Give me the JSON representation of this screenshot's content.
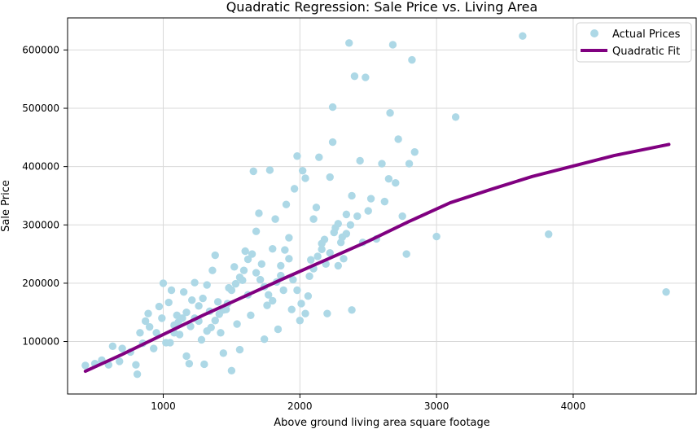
{
  "chart_data": {
    "type": "scatter",
    "title": "Quadratic Regression: Sale Price vs. Living Area",
    "xlabel": "Above ground living area square footage",
    "ylabel": "Sale Price",
    "xlim": [
      300,
      4900
    ],
    "ylim": [
      10000,
      655000
    ],
    "xticks": [
      1000,
      2000,
      3000,
      4000
    ],
    "yticks": [
      100000,
      200000,
      300000,
      400000,
      500000,
      600000
    ],
    "xtick_labels": [
      "1000",
      "2000",
      "3000",
      "4000"
    ],
    "ytick_labels": [
      "100000",
      "200000",
      "300000",
      "400000",
      "500000",
      "600000"
    ],
    "grid": true,
    "legend_position": "top-right",
    "colors": {
      "scatter": "#add8e6",
      "fit": "#800080"
    },
    "series": [
      {
        "name": "Actual Prices",
        "kind": "scatter",
        "points": [
          [
            430,
            59000
          ],
          [
            500,
            62000
          ],
          [
            550,
            68000
          ],
          [
            600,
            60000
          ],
          [
            630,
            92000
          ],
          [
            680,
            66000
          ],
          [
            700,
            88000
          ],
          [
            760,
            82000
          ],
          [
            800,
            60000
          ],
          [
            810,
            44000
          ],
          [
            830,
            115000
          ],
          [
            850,
            97000
          ],
          [
            870,
            135000
          ],
          [
            890,
            148000
          ],
          [
            900,
            125000
          ],
          [
            930,
            88000
          ],
          [
            950,
            115000
          ],
          [
            970,
            160000
          ],
          [
            990,
            140000
          ],
          [
            1000,
            200000
          ],
          [
            1020,
            98000
          ],
          [
            1040,
            167000
          ],
          [
            1060,
            188000
          ],
          [
            1080,
            128000
          ],
          [
            1100,
            145000
          ],
          [
            1120,
            112000
          ],
          [
            1150,
            185000
          ],
          [
            1170,
            75000
          ],
          [
            1190,
            62000
          ],
          [
            1210,
            171000
          ],
          [
            1230,
            201000
          ],
          [
            1260,
            135000
          ],
          [
            1280,
            103000
          ],
          [
            1300,
            61000
          ],
          [
            1320,
            197000
          ],
          [
            1340,
            152000
          ],
          [
            1360,
            222000
          ],
          [
            1380,
            248000
          ],
          [
            1400,
            168000
          ],
          [
            1420,
            115000
          ],
          [
            1440,
            80000
          ],
          [
            1460,
            155000
          ],
          [
            1480,
            192000
          ],
          [
            1500,
            50000
          ],
          [
            1520,
            228000
          ],
          [
            1540,
            130000
          ],
          [
            1560,
            86000
          ],
          [
            1580,
            205000
          ],
          [
            1600,
            255000
          ],
          [
            1620,
            180000
          ],
          [
            1640,
            145000
          ],
          [
            1660,
            392000
          ],
          [
            1680,
            289000
          ],
          [
            1700,
            320000
          ],
          [
            1720,
            233000
          ],
          [
            1740,
            104000
          ],
          [
            1760,
            162000
          ],
          [
            1780,
            394000
          ],
          [
            1800,
            259000
          ],
          [
            1820,
            310000
          ],
          [
            1840,
            121000
          ],
          [
            1860,
            213000
          ],
          [
            1880,
            188000
          ],
          [
            1900,
            335000
          ],
          [
            1920,
            242000
          ],
          [
            1940,
            155000
          ],
          [
            1960,
            362000
          ],
          [
            1980,
            418000
          ],
          [
            2000,
            136000
          ],
          [
            2020,
            393000
          ],
          [
            2040,
            380000
          ],
          [
            2060,
            178000
          ],
          [
            2080,
            240000
          ],
          [
            2100,
            310000
          ],
          [
            2120,
            330000
          ],
          [
            2140,
            416000
          ],
          [
            2160,
            258000
          ],
          [
            2180,
            275000
          ],
          [
            2200,
            148000
          ],
          [
            2220,
            382000
          ],
          [
            2240,
            442000
          ],
          [
            2260,
            295000
          ],
          [
            2280,
            230000
          ],
          [
            2300,
            270000
          ],
          [
            2320,
            242000
          ],
          [
            2340,
            318000
          ],
          [
            2360,
            612000
          ],
          [
            2380,
            350000
          ],
          [
            2400,
            555000
          ],
          [
            2420,
            315000
          ],
          [
            2440,
            410000
          ],
          [
            2460,
            270000
          ],
          [
            2480,
            553000
          ],
          [
            2500,
            324000
          ],
          [
            2520,
            345000
          ],
          [
            2560,
            276000
          ],
          [
            2600,
            405000
          ],
          [
            2620,
            340000
          ],
          [
            2650,
            379000
          ],
          [
            2680,
            609000
          ],
          [
            2700,
            372000
          ],
          [
            2720,
            447000
          ],
          [
            2750,
            315000
          ],
          [
            2780,
            250000
          ],
          [
            2800,
            405000
          ],
          [
            2820,
            583000
          ],
          [
            2840,
            425000
          ],
          [
            3000,
            280000
          ],
          [
            3140,
            485000
          ],
          [
            3630,
            624000
          ],
          [
            3820,
            284000
          ],
          [
            4680,
            185000
          ],
          [
            2240,
            502000
          ],
          [
            2660,
            492000
          ],
          [
            2380,
            154000
          ],
          [
            1050,
            98000
          ],
          [
            1080,
            115000
          ],
          [
            1110,
            133000
          ],
          [
            1140,
            140000
          ],
          [
            1170,
            150000
          ],
          [
            1200,
            126000
          ],
          [
            1230,
            140000
          ],
          [
            1260,
            161000
          ],
          [
            1290,
            174000
          ],
          [
            1320,
            118000
          ],
          [
            1350,
            124000
          ],
          [
            1380,
            136000
          ],
          [
            1410,
            147000
          ],
          [
            1440,
            154000
          ],
          [
            1470,
            165000
          ],
          [
            1500,
            188000
          ],
          [
            1530,
            199000
          ],
          [
            1560,
            210000
          ],
          [
            1590,
            222000
          ],
          [
            1620,
            241000
          ],
          [
            1650,
            250000
          ],
          [
            1680,
            218000
          ],
          [
            1710,
            206000
          ],
          [
            1740,
            194000
          ],
          [
            1770,
            180000
          ],
          [
            1800,
            170000
          ],
          [
            1830,
            202000
          ],
          [
            1860,
            230000
          ],
          [
            1890,
            257000
          ],
          [
            1920,
            278000
          ],
          [
            1950,
            206000
          ],
          [
            1980,
            188000
          ],
          [
            2010,
            165000
          ],
          [
            2040,
            148000
          ],
          [
            2070,
            212000
          ],
          [
            2100,
            225000
          ],
          [
            2130,
            246000
          ],
          [
            2160,
            268000
          ],
          [
            2190,
            233000
          ],
          [
            2220,
            252000
          ],
          [
            2250,
            287000
          ],
          [
            2280,
            302000
          ],
          [
            2310,
            279000
          ],
          [
            2340,
            285000
          ],
          [
            2370,
            300000
          ]
        ]
      },
      {
        "name": "Quadratic Fit",
        "kind": "line",
        "points": [
          [
            430,
            49000
          ],
          [
            700,
            78000
          ],
          [
            1000,
            112000
          ],
          [
            1300,
            146000
          ],
          [
            1600,
            178000
          ],
          [
            1900,
            210000
          ],
          [
            2200,
            241000
          ],
          [
            2500,
            272000
          ],
          [
            2800,
            306000
          ],
          [
            3100,
            338000
          ],
          [
            3400,
            361000
          ],
          [
            3700,
            383000
          ],
          [
            4000,
            401000
          ],
          [
            4300,
            419000
          ],
          [
            4700,
            438000
          ]
        ]
      }
    ]
  }
}
